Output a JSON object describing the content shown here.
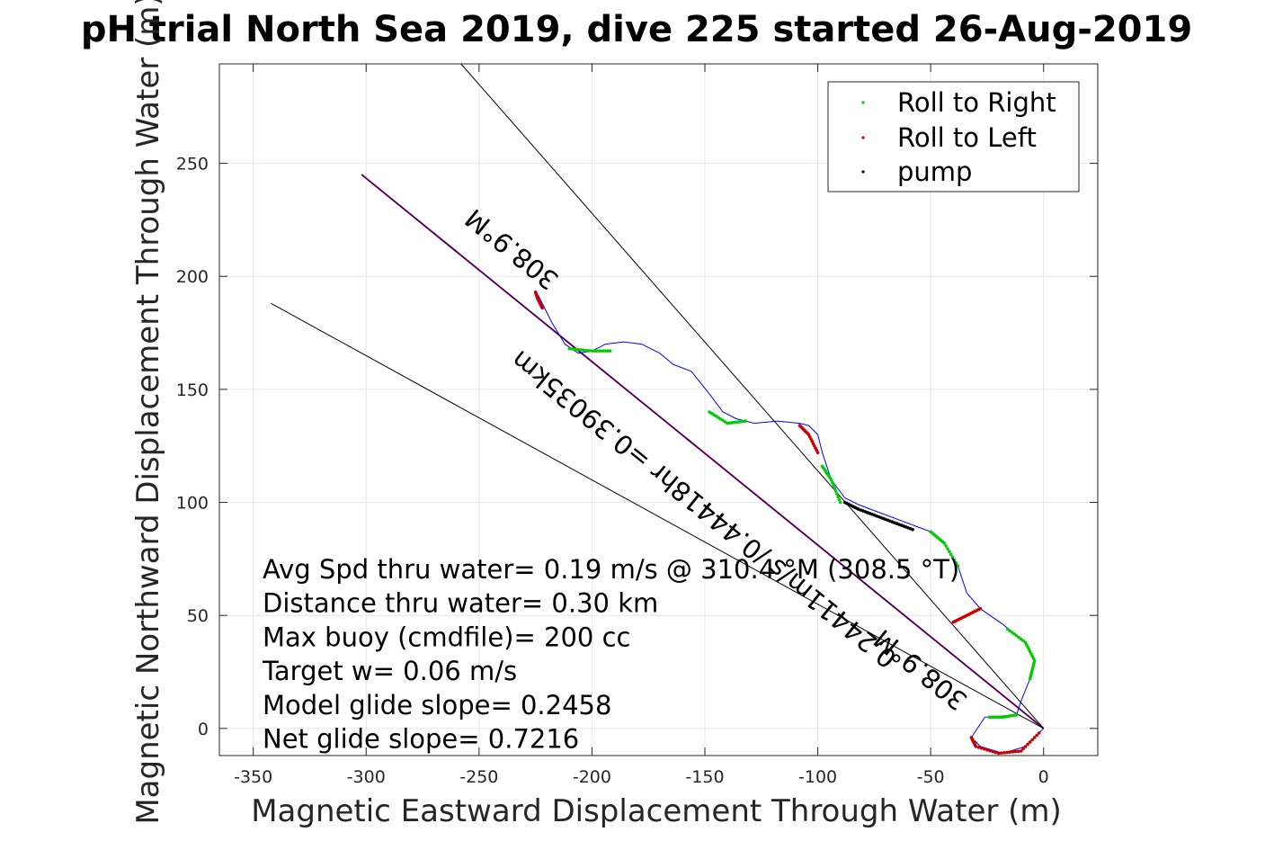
{
  "chart_data": {
    "type": "line",
    "title": "pH trial North Sea 2019, dive 225 started 26-Aug-2019",
    "xlabel": "Magnetic Eastward Displacement Through Water (m)",
    "ylabel": "Magnetic Northward Displacement Through Water (m)",
    "xlim": [
      -365,
      24
    ],
    "ylim": [
      -12,
      294
    ],
    "xticks": [
      -350,
      -300,
      -250,
      -200,
      -150,
      -100,
      -50,
      0
    ],
    "yticks": [
      0,
      50,
      100,
      150,
      200,
      250
    ],
    "grid": true,
    "legend": {
      "placement": "top-right",
      "entries": [
        {
          "label": "Roll to Right",
          "color": "#00cc00"
        },
        {
          "label": "Roll to Left",
          "color": "#cc0000"
        },
        {
          "label": "pump",
          "color": "#000000"
        }
      ]
    },
    "track": {
      "name": "track",
      "color": "#0000ff",
      "x": [
        0,
        -8,
        -18,
        -28,
        -32,
        -26,
        -12,
        -10,
        -6,
        -4,
        -8,
        -18,
        -28,
        -34,
        -38,
        -44,
        -50,
        -58,
        -66,
        -74,
        -82,
        -88,
        -94,
        -98,
        -100,
        -104,
        -108,
        -118,
        -128,
        -136,
        -142,
        -148,
        -156,
        -164,
        -170,
        -178,
        -186,
        -194,
        -200,
        -206,
        -212,
        -218,
        -222,
        -224
      ],
      "y": [
        0,
        -8,
        -11,
        -8,
        -4,
        5,
        6,
        12,
        22,
        30,
        38,
        46,
        53,
        60,
        72,
        82,
        87,
        90,
        93,
        96,
        99,
        102,
        110,
        122,
        130,
        134,
        135,
        136,
        135,
        137,
        140,
        148,
        158,
        161,
        166,
        170,
        171,
        170,
        167,
        166,
        170,
        180,
        188,
        192
      ]
    },
    "roll_right": [
      {
        "x": [
          -6,
          -4,
          -8,
          -16
        ],
        "y": [
          22,
          30,
          38,
          44
        ]
      },
      {
        "x": [
          -38,
          -44,
          -50
        ],
        "y": [
          72,
          82,
          87
        ]
      },
      {
        "x": [
          -90,
          -94,
          -98
        ],
        "y": [
          100,
          110,
          116
        ]
      },
      {
        "x": [
          -148,
          -140,
          -132
        ],
        "y": [
          140,
          135,
          136
        ]
      },
      {
        "x": [
          -210,
          -200,
          -192
        ],
        "y": [
          168,
          167,
          167
        ]
      },
      {
        "x": [
          -12,
          -18,
          -24
        ],
        "y": [
          6,
          5,
          5
        ]
      }
    ],
    "roll_left": [
      {
        "x": [
          -2,
          -10,
          -20,
          -30,
          -32
        ],
        "y": [
          -2,
          -10,
          -11,
          -8,
          -4
        ]
      },
      {
        "x": [
          -28,
          -34,
          -40
        ],
        "y": [
          53,
          50,
          47
        ]
      },
      {
        "x": [
          -100,
          -104,
          -108
        ],
        "y": [
          122,
          130,
          134
        ]
      },
      {
        "x": [
          -222,
          -224,
          -225
        ],
        "y": [
          186,
          190,
          193
        ]
      }
    ],
    "pump": [
      {
        "x": [
          -58,
          -66,
          -74,
          -82,
          -88
        ],
        "y": [
          88,
          91,
          94,
          97,
          100
        ]
      }
    ],
    "reference_lines": [
      {
        "name": "heading-line",
        "color": "#cc00cc",
        "x": [
          0,
          -302
        ],
        "y": [
          0,
          245
        ]
      },
      {
        "name": "upper-bound-line",
        "color": "#000000",
        "x": [
          0,
          -258
        ],
        "y": [
          0,
          294
        ]
      },
      {
        "name": "lower-bound-line",
        "color": "#000000",
        "x": [
          0,
          -342
        ],
        "y": [
          0,
          188
        ]
      },
      {
        "name": "heading-overlay-line",
        "color": "#000000",
        "x": [
          0,
          -302
        ],
        "y": [
          0,
          245
        ]
      }
    ],
    "rotated_labels": [
      {
        "text": "308.9°M",
        "x": -233,
        "y": 215
      },
      {
        "text": "0.24411m/s /0.44418hr =0.39035km",
        "x": -148,
        "y": 100
      },
      {
        "text": "308.9°M",
        "x": -52,
        "y": 29
      }
    ],
    "annotations": [
      "Avg Spd thru water=  0.19 m/s @ 310.4 °M (308.5 °T)",
      "Distance thru water=  0.30 km",
      "Max buoy (cmdfile)= 200 cc",
      "Target w= 0.06 m/s",
      "Model glide slope= 0.2458",
      "Net glide slope= 0.7216"
    ]
  }
}
